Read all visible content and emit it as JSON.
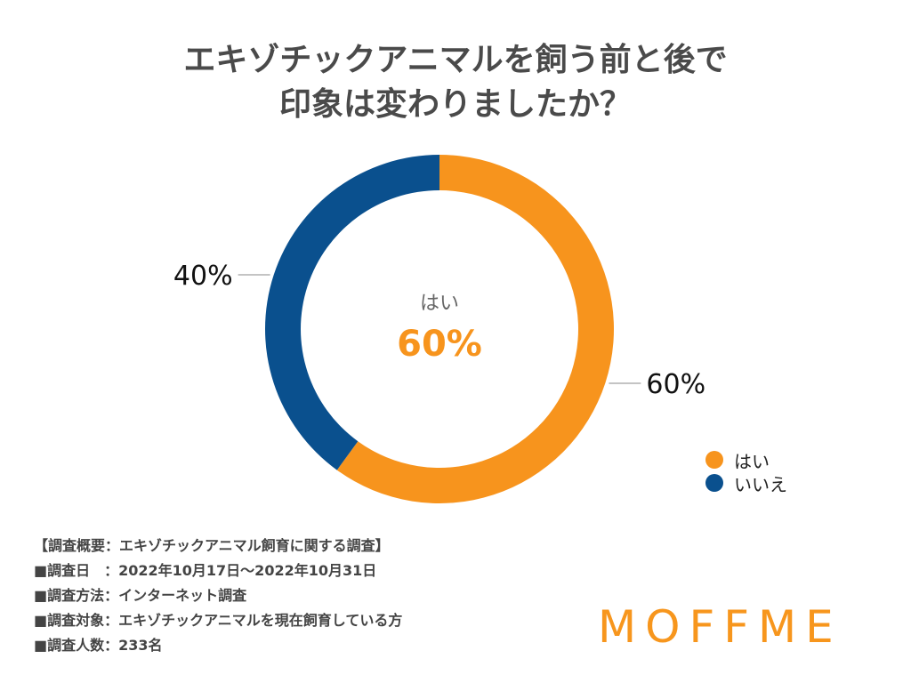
{
  "title": {
    "line1": "エキゾチックアニマルを飼う前と後で",
    "line2": "印象は変わりましたか？"
  },
  "chart_data": {
    "type": "pie",
    "categories": [
      "はい",
      "いいえ"
    ],
    "values": [
      60,
      40
    ],
    "unit": "%",
    "data_labels": [
      "60%",
      "40%"
    ],
    "colors": [
      "#f7941d",
      "#0a508e"
    ],
    "center_label": "はい",
    "center_value": "60%",
    "legend": {
      "placement": "bottom-right",
      "entries": [
        "はい",
        "いいえ"
      ]
    },
    "donut": true
  },
  "survey_notes": [
    "【調査概要：エキゾチックアニマル飼育に関する調査】",
    "■調査日　：2022年10月17日〜2022年10月31日",
    "■調査方法：インターネット調査",
    "■調査対象：エキゾチックアニマルを現在飼育している方",
    "■調査人数：233名"
  ],
  "logo": "MOFFME"
}
